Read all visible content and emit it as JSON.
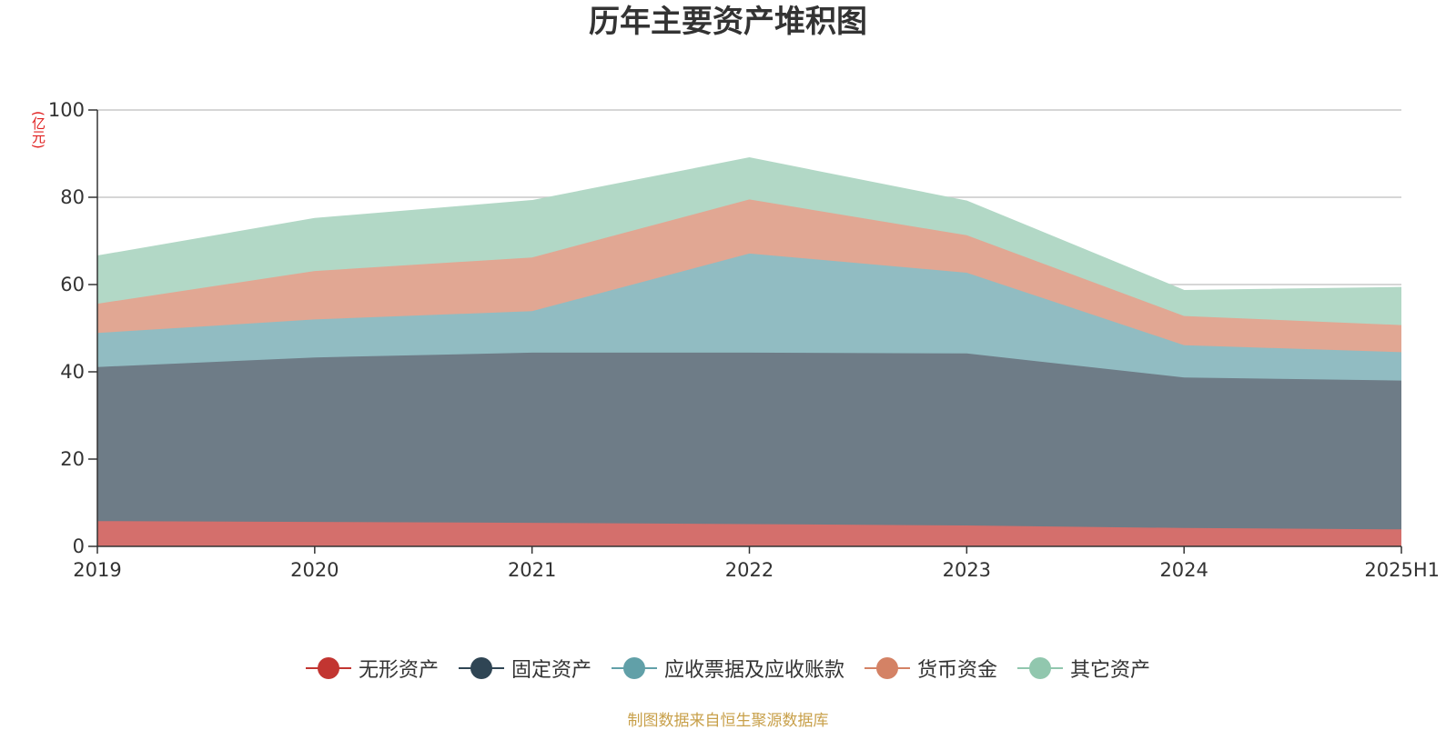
{
  "chart_data": {
    "type": "area",
    "stacked": true,
    "title": "历年主要资产堆积图",
    "unit": "(亿元)",
    "categories": [
      "2019",
      "2020",
      "2021",
      "2022",
      "2023",
      "2024",
      "2025H1"
    ],
    "ylim": [
      0,
      100
    ],
    "yticks": [
      "0",
      "20",
      "40",
      "60",
      "80",
      "100"
    ],
    "grid": true,
    "legend_position": "bottom",
    "series": [
      {
        "name": "无形资产",
        "values": [
          5.8,
          5.6,
          5.4,
          5.1,
          4.8,
          4.2,
          3.9
        ],
        "color": "#c23531",
        "area_color": "#d46f6c"
      },
      {
        "name": "固定资产",
        "values": [
          35.3,
          37.7,
          39.0,
          39.3,
          39.4,
          34.5,
          34.1
        ],
        "color": "#2f4554",
        "area_color": "#6e7c87"
      },
      {
        "name": "应收票据及应收账款",
        "values": [
          7.8,
          8.7,
          9.5,
          22.7,
          18.5,
          7.4,
          6.5
        ],
        "color": "#61a0a8",
        "area_color": "#91bcc2"
      },
      {
        "name": "货币资金",
        "values": [
          6.7,
          11.1,
          12.3,
          12.4,
          8.6,
          6.7,
          6.2
        ],
        "color": "#d48265",
        "area_color": "#e1a793"
      },
      {
        "name": "其它资产",
        "values": [
          10.9,
          12.0,
          13.0,
          9.5,
          7.8,
          5.8,
          8.6
        ],
        "color": "#91c7ae",
        "area_color": "#b2d8c6"
      }
    ]
  },
  "source_note": "制图数据来自恒生聚源数据库"
}
